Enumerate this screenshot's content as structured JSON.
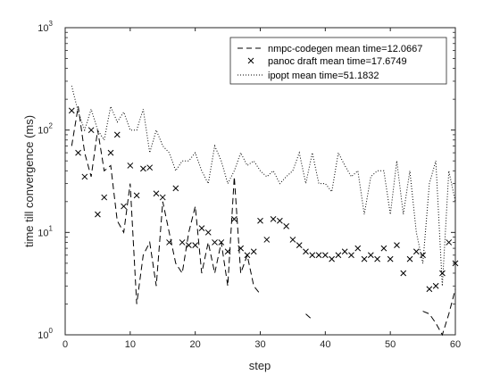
{
  "chart_data": {
    "type": "line",
    "title": "",
    "xlabel": "step",
    "ylabel": "time till convergence (ms)",
    "xlim": [
      0,
      60
    ],
    "ylim": [
      1,
      1000
    ],
    "yscale": "log",
    "xticks": [
      "0",
      "10",
      "20",
      "30",
      "40",
      "50",
      "60"
    ],
    "yticks": [
      {
        "base": "10",
        "exp": "0"
      },
      {
        "base": "10",
        "exp": "1"
      },
      {
        "base": "10",
        "exp": "2"
      },
      {
        "base": "10",
        "exp": "3"
      }
    ],
    "grid": false,
    "legend_position": "top-right",
    "x": [
      1,
      2,
      3,
      4,
      5,
      6,
      7,
      8,
      9,
      10,
      11,
      12,
      13,
      14,
      15,
      16,
      17,
      18,
      19,
      20,
      21,
      22,
      23,
      24,
      25,
      26,
      27,
      28,
      29,
      30,
      31,
      32,
      33,
      34,
      35,
      36,
      37,
      38,
      39,
      40,
      41,
      42,
      43,
      44,
      45,
      46,
      47,
      48,
      49,
      50,
      51,
      52,
      53,
      54,
      55,
      56,
      57,
      58,
      59,
      60
    ],
    "series": [
      {
        "name": "nmpc-codegen mean time=12.0667",
        "style": "dashed",
        "marker": "none",
        "values": [
          70,
          170,
          60,
          35,
          100,
          40,
          45,
          13,
          10,
          30,
          2,
          6,
          8,
          3,
          20,
          10,
          5,
          4,
          10,
          18,
          4,
          8,
          4,
          8,
          3,
          35,
          4,
          6,
          3,
          2.5,
          null,
          null,
          null,
          null,
          null,
          null,
          1.6,
          1.4,
          null,
          null,
          null,
          null,
          null,
          null,
          null,
          null,
          null,
          null,
          null,
          null,
          null,
          null,
          null,
          null,
          1.7,
          1.6,
          1.3,
          1,
          1.6,
          2.8
        ]
      },
      {
        "name": "panoc draft mean time=17.6749",
        "style": "none",
        "marker": "x",
        "values": [
          155,
          60,
          35,
          100,
          15,
          22,
          60,
          90,
          18,
          45,
          23,
          42,
          43,
          24,
          22,
          8,
          27,
          8,
          7.5,
          7.5,
          11,
          10,
          8,
          8,
          6.5,
          13.5,
          7,
          6,
          6.5,
          13,
          8.5,
          13.5,
          13,
          11.5,
          8.5,
          7.5,
          6.5,
          6,
          6,
          6,
          5.5,
          6,
          6.5,
          6,
          7,
          5.5,
          6,
          5.5,
          7,
          5.5,
          7.5,
          4,
          5.5,
          6.5,
          6,
          2.8,
          3,
          4,
          8,
          5
        ]
      },
      {
        "name": "ipopt mean time=51.1832",
        "style": "dotted",
        "marker": "none",
        "values": [
          270,
          150,
          100,
          160,
          100,
          80,
          170,
          120,
          150,
          100,
          100,
          160,
          60,
          100,
          70,
          60,
          40,
          50,
          50,
          60,
          40,
          30,
          70,
          50,
          30,
          40,
          60,
          45,
          50,
          40,
          35,
          40,
          30,
          35,
          40,
          60,
          30,
          60,
          30,
          30,
          25,
          60,
          45,
          35,
          40,
          15,
          35,
          40,
          40,
          15,
          50,
          15,
          40,
          10,
          5,
          30,
          50,
          3,
          40,
          20
        ]
      }
    ]
  }
}
